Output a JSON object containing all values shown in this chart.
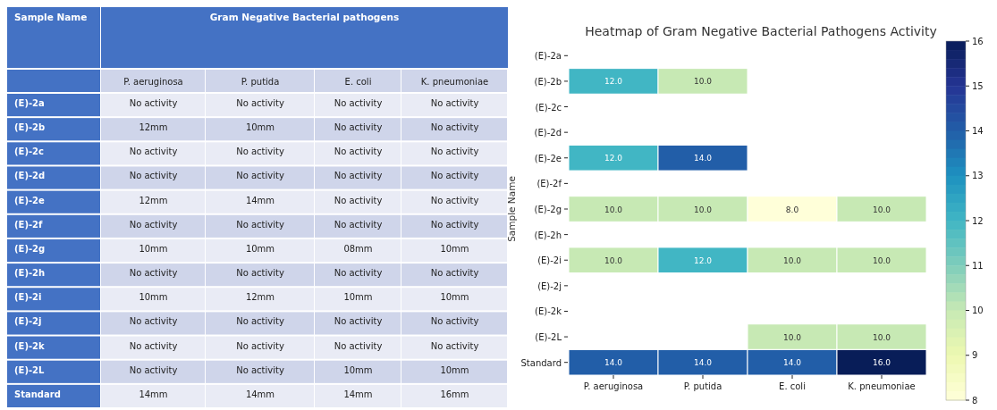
{
  "chart_data": [
    {
      "type": "heatmap",
      "title": "Gram Negative Bacterial pathogens",
      "ylabel": "Sample Name",
      "categories": [
        "P. aeruginosa",
        "P. putida",
        "E. coli",
        "K. pneumoniae"
      ],
      "y_categories": [
        "(E)-2a",
        "(E)-2b",
        "(E)-2c",
        "(E)-2d",
        "(E)-2e",
        "(E)-2f",
        "(E)-2g",
        "(E)-2h",
        "(E)-2i",
        "(E)-2j",
        "(E)-2k",
        "(E)-2L",
        "Standard"
      ],
      "cells": [
        [
          null,
          null,
          null,
          null
        ],
        [
          12,
          10,
          null,
          null
        ],
        [
          null,
          null,
          null,
          null
        ],
        [
          null,
          null,
          null,
          null
        ],
        [
          12,
          14,
          null,
          null
        ],
        [
          null,
          null,
          null,
          null
        ],
        [
          10,
          10,
          8,
          10
        ],
        [
          null,
          null,
          null,
          null
        ],
        [
          10,
          12,
          10,
          10
        ],
        [
          null,
          null,
          null,
          null
        ],
        [
          null,
          null,
          null,
          null
        ],
        [
          null,
          null,
          10,
          10
        ],
        [
          14,
          14,
          14,
          16
        ]
      ],
      "cell_labels": [
        [
          "No activity",
          "No activity",
          "No activity",
          "No activity"
        ],
        [
          "12mm",
          "10mm",
          "No activity",
          "No activity"
        ],
        [
          "No activity",
          "No activity",
          "No activity",
          "No activity"
        ],
        [
          "No activity",
          "No activity",
          "No activity",
          "No activity"
        ],
        [
          "12mm",
          "14mm",
          "No activity",
          "No activity"
        ],
        [
          "No activity",
          "No activity",
          "No activity",
          "No activity"
        ],
        [
          "10mm",
          "10mm",
          "08mm",
          "10mm"
        ],
        [
          "No activity",
          "No activity",
          "No activity",
          "No activity"
        ],
        [
          "10mm",
          "12mm",
          "10mm",
          "10mm"
        ],
        [
          "No activity",
          "No activity",
          "No activity",
          "No activity"
        ],
        [
          "No activity",
          "No activity",
          "No activity",
          "No activity"
        ],
        [
          "No activity",
          "No activity",
          "10mm",
          "10mm"
        ],
        [
          "14mm",
          "14mm",
          "14mm",
          "16mm"
        ]
      ]
    },
    {
      "type": "heatmap",
      "title": "Heatmap of Gram Negative Bacterial Pathogens Activity",
      "ylabel": "Sample Name",
      "categories": [
        "P. aeruginosa",
        "P. putida",
        "E. coli",
        "K. pneumoniae"
      ],
      "y_categories": [
        "(E)-2a",
        "(E)-2b",
        "(E)-2c",
        "(E)-2d",
        "(E)-2e",
        "(E)-2f",
        "(E)-2g",
        "(E)-2h",
        "(E)-2i",
        "(E)-2j",
        "(E)-2k",
        "(E)-2L",
        "Standard"
      ],
      "cells": [
        [
          null,
          null,
          null,
          null
        ],
        [
          12,
          10,
          null,
          null
        ],
        [
          null,
          null,
          null,
          null
        ],
        [
          null,
          null,
          null,
          null
        ],
        [
          12,
          14,
          null,
          null
        ],
        [
          null,
          null,
          null,
          null
        ],
        [
          10,
          10,
          8,
          10
        ],
        [
          null,
          null,
          null,
          null
        ],
        [
          10,
          12,
          10,
          10
        ],
        [
          null,
          null,
          null,
          null
        ],
        [
          null,
          null,
          null,
          null
        ],
        [
          null,
          null,
          10,
          10
        ],
        [
          14,
          14,
          14,
          16
        ]
      ],
      "cell_labels": [
        [
          null,
          null,
          null,
          null
        ],
        [
          "12.0",
          "10.0",
          null,
          null
        ],
        [
          null,
          null,
          null,
          null
        ],
        [
          null,
          null,
          null,
          null
        ],
        [
          "12.0",
          "14.0",
          null,
          null
        ],
        [
          null,
          null,
          null,
          null
        ],
        [
          "10.0",
          "10.0",
          "8.0",
          "10.0"
        ],
        [
          null,
          null,
          null,
          null
        ],
        [
          "10.0",
          "12.0",
          "10.0",
          "10.0"
        ],
        [
          null,
          null,
          null,
          null
        ],
        [
          null,
          null,
          null,
          null
        ],
        [
          null,
          null,
          "10.0",
          "10.0"
        ],
        [
          "14.0",
          "14.0",
          "14.0",
          "16.0"
        ]
      ],
      "clim": [
        8,
        16
      ],
      "cticks": [
        8,
        9,
        10,
        11,
        12,
        13,
        14,
        15,
        16
      ]
    }
  ]
}
